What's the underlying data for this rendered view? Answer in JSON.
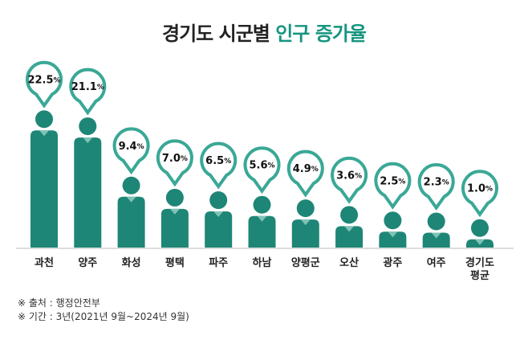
{
  "chart_data": {
    "type": "people-bar",
    "title": {
      "main": "경기도 시군별",
      "highlight": "인구 증가율"
    },
    "categories": [
      "과천",
      "양주",
      "화성",
      "평택",
      "파주",
      "하남",
      "양평군",
      "오산",
      "광주",
      "여주",
      "경기도\n평균"
    ],
    "values": [
      22.5,
      21.1,
      9.4,
      7.0,
      6.5,
      5.6,
      4.9,
      3.6,
      2.5,
      2.3,
      1.0
    ],
    "value_labels": [
      "22.5%",
      "21.1%",
      "9.4%",
      "7.0%",
      "6.5%",
      "5.6%",
      "4.9%",
      "3.6%",
      "2.5%",
      "2.3%",
      "1.0%"
    ],
    "color": "#1e8676",
    "highlight_color": "#15957f",
    "notes": [
      "※ 출처 : 행정안전부",
      "※ 기간 : 3년(2021년 9월~2024년 9월)"
    ]
  }
}
